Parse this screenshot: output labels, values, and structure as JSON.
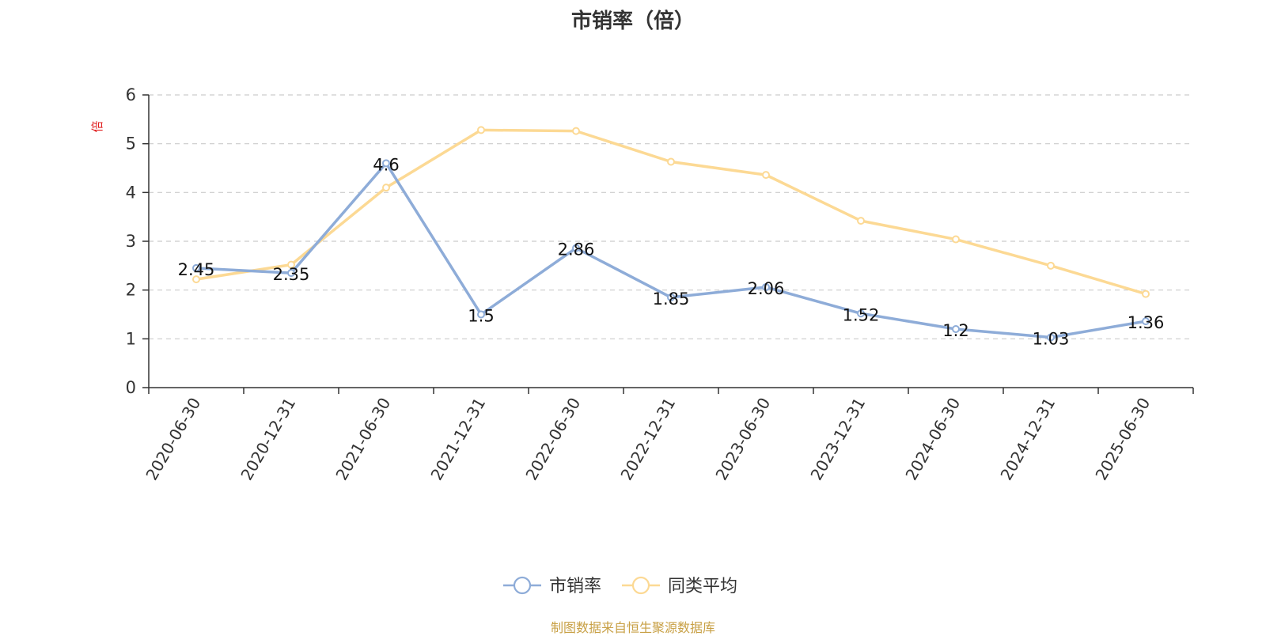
{
  "chart_data": {
    "type": "line",
    "title": "市销率（倍）",
    "ylabel": "倍",
    "ylim": [
      0,
      6
    ],
    "yticks": [
      0,
      1,
      2,
      3,
      4,
      5,
      6
    ],
    "grid": "horizontal-dashed",
    "legend_position": "bottom-center",
    "categories": [
      "2020-06-30",
      "2020-12-31",
      "2021-06-30",
      "2021-12-31",
      "2022-06-30",
      "2022-12-31",
      "2023-06-30",
      "2023-12-31",
      "2024-06-30",
      "2024-12-31",
      "2025-06-30"
    ],
    "series": [
      {
        "name": "市销率",
        "color": "#8eacd8",
        "values": [
          2.45,
          2.35,
          4.6,
          1.5,
          2.86,
          1.85,
          2.06,
          1.52,
          1.2,
          1.03,
          1.36
        ],
        "labels": [
          "2.45",
          "2.35",
          "4.6",
          "1.5",
          "2.86",
          "1.85",
          "2.06",
          "1.52",
          "1.2",
          "1.03",
          "1.36"
        ]
      },
      {
        "name": "同类平均",
        "color": "#fcd994",
        "values": [
          2.22,
          2.52,
          4.1,
          5.28,
          5.26,
          4.63,
          4.36,
          3.42,
          3.04,
          2.5,
          1.92
        ]
      }
    ]
  },
  "footer": {
    "source": "制图数据来自恒生聚源数据库",
    "color": "#c8a045"
  },
  "colors": {
    "axis": "#333333",
    "grid": "#cccccc",
    "ylabel": "#e02020"
  }
}
